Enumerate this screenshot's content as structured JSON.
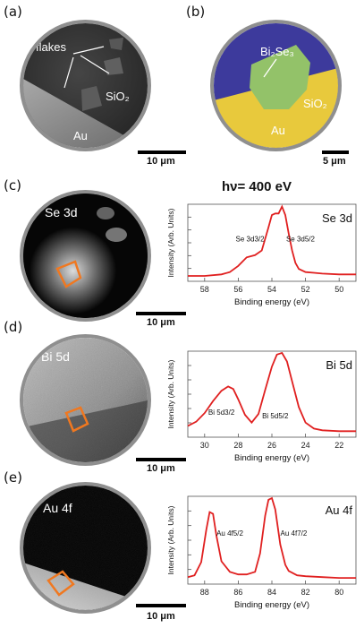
{
  "panels": {
    "a": {
      "label": "(a)",
      "flakes_label": "flakes",
      "sio2_label": "SiO₂",
      "au_label": "Au",
      "scale": "10 μm"
    },
    "b": {
      "label": "(b)",
      "material_label": "Bi₂Se₃",
      "sio2_label": "SiO₂",
      "au_label": "Au",
      "scale": "5 μm"
    },
    "c": {
      "label": "(c)",
      "image_label": "Se 3d",
      "scale": "10 μm"
    },
    "d": {
      "label": "(d)",
      "image_label": "Bi 5d",
      "scale": "10 μm"
    },
    "e": {
      "label": "(e)",
      "image_label": "Au 4f",
      "scale": "10 μm"
    }
  },
  "photon_energy": "hν= 400 eV",
  "colors": {
    "curve": "#e02020",
    "roi": "#f07820",
    "disk_border": "#8f8f8f"
  },
  "chart_data": [
    {
      "type": "line",
      "title": "Se 3d",
      "xlabel": "Binding energy (eV)",
      "ylabel": "Intensity (Arb. Units)",
      "xlim": [
        59,
        49
      ],
      "xticks": [
        58,
        56,
        54,
        52,
        50
      ],
      "ylim": [
        0,
        1
      ],
      "annotations": [
        {
          "text": "Se 3d3/2",
          "x": 55.3,
          "y": 0.52
        },
        {
          "text": "Se 3d5/2",
          "x": 52.3,
          "y": 0.52
        }
      ],
      "series": [
        {
          "x": [
            59.0,
            58.0,
            57.0,
            56.5,
            56.0,
            55.5,
            55.0,
            54.6,
            54.2,
            54.0,
            53.8,
            53.6,
            53.4,
            53.2,
            53.0,
            52.8,
            52.6,
            52.4,
            52.0,
            51.5,
            51.0,
            50.0,
            49.0
          ],
          "y": [
            0.07,
            0.07,
            0.09,
            0.12,
            0.2,
            0.31,
            0.34,
            0.4,
            0.7,
            0.86,
            0.88,
            0.88,
            0.97,
            0.86,
            0.62,
            0.4,
            0.24,
            0.16,
            0.12,
            0.11,
            0.1,
            0.09,
            0.09
          ]
        }
      ]
    },
    {
      "type": "line",
      "title": "Bi 5d",
      "xlabel": "Binding energy (eV)",
      "ylabel": "Intensity (Arb. Units)",
      "xlim": [
        31,
        21
      ],
      "xticks": [
        30,
        28,
        26,
        24,
        22
      ],
      "ylim": [
        0,
        1
      ],
      "annotations": [
        {
          "text": "Bi 5d3/2",
          "x": 29.0,
          "y": 0.26
        },
        {
          "text": "Bi 5d5/2",
          "x": 25.8,
          "y": 0.22
        }
      ],
      "series": [
        {
          "x": [
            31.0,
            30.5,
            30.0,
            29.5,
            29.0,
            28.6,
            28.3,
            28.0,
            27.6,
            27.2,
            26.8,
            26.4,
            26.0,
            25.7,
            25.4,
            25.1,
            24.8,
            24.4,
            24.0,
            23.5,
            23.0,
            22.0,
            21.0
          ],
          "y": [
            0.13,
            0.18,
            0.28,
            0.42,
            0.54,
            0.59,
            0.56,
            0.44,
            0.26,
            0.17,
            0.27,
            0.55,
            0.82,
            0.96,
            0.98,
            0.88,
            0.65,
            0.35,
            0.17,
            0.1,
            0.08,
            0.07,
            0.07
          ]
        }
      ]
    },
    {
      "type": "line",
      "title": "Au 4f",
      "xlabel": "Binding energy (eV)",
      "ylabel": "Intensity (Arb. Units)",
      "xlim": [
        89,
        79
      ],
      "xticks": [
        88,
        86,
        84,
        82,
        80
      ],
      "ylim": [
        0,
        1
      ],
      "annotations": [
        {
          "text": "Au 4f5/2",
          "x": 86.5,
          "y": 0.55
        },
        {
          "text": "Au 4f7/2",
          "x": 82.7,
          "y": 0.55
        }
      ],
      "series": [
        {
          "x": [
            89.0,
            88.6,
            88.2,
            87.9,
            87.7,
            87.5,
            87.3,
            87.0,
            86.5,
            86.0,
            85.5,
            85.0,
            84.7,
            84.4,
            84.2,
            84.0,
            83.8,
            83.5,
            83.2,
            83.0,
            82.5,
            82.0,
            81.0,
            80.0,
            79.0
          ],
          "y": [
            0.08,
            0.1,
            0.25,
            0.62,
            0.82,
            0.8,
            0.55,
            0.26,
            0.14,
            0.11,
            0.11,
            0.14,
            0.35,
            0.78,
            0.96,
            0.98,
            0.85,
            0.45,
            0.22,
            0.15,
            0.1,
            0.09,
            0.08,
            0.07,
            0.07
          ]
        }
      ]
    }
  ]
}
